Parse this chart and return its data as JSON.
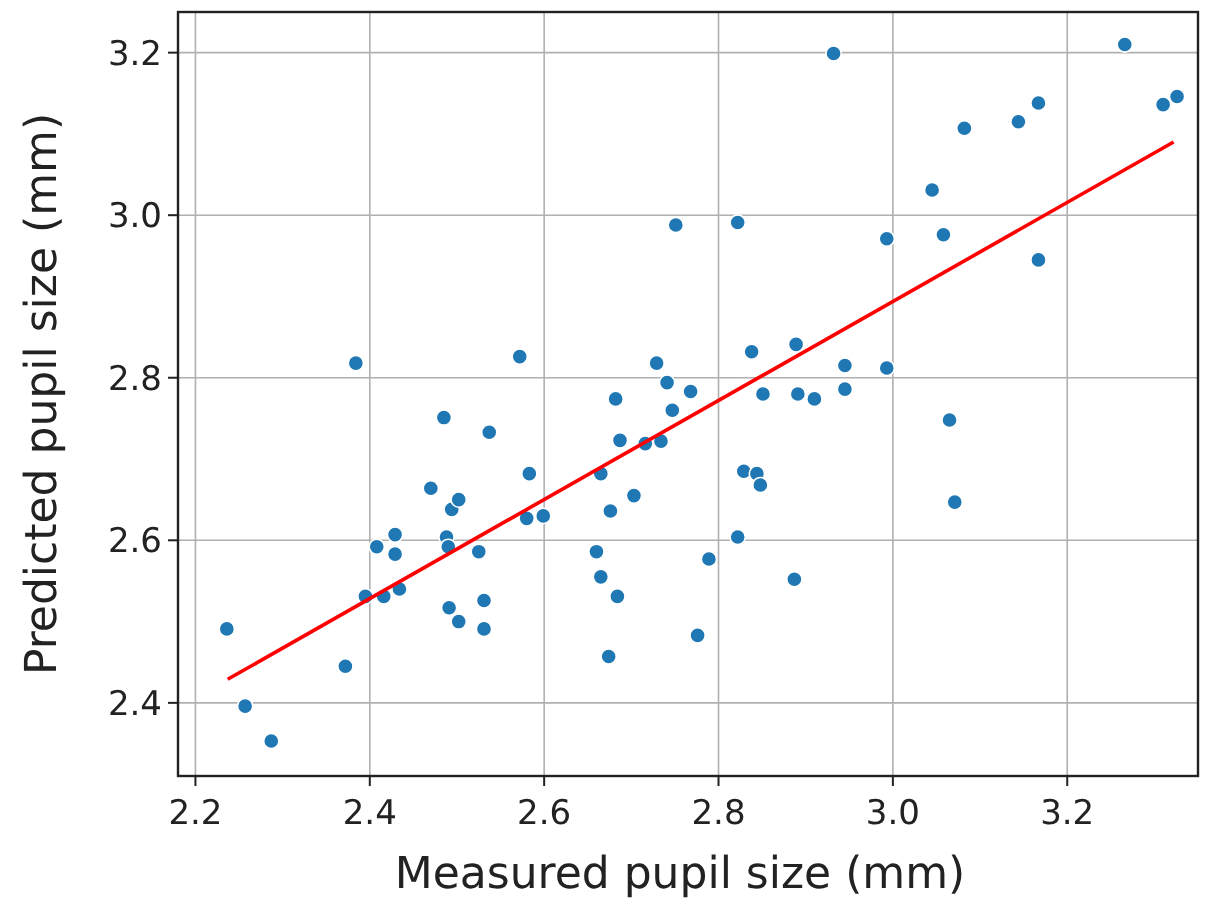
{
  "chart_data": {
    "type": "scatter",
    "xlabel": "Measured pupil size (mm)",
    "ylabel": "Predicted pupil size (mm)",
    "xlim": [
      2.18,
      3.35
    ],
    "ylim": [
      2.31,
      3.25
    ],
    "xticks": [
      2.2,
      2.4,
      2.6,
      2.8,
      {
        "value": 3,
        "label": "3.0"
      },
      3.2
    ],
    "yticks": [
      2.4,
      2.6,
      2.8,
      {
        "value": 3,
        "label": "3.0"
      },
      3.2
    ],
    "grid": true,
    "x": [
      2.236,
      2.257,
      2.287,
      2.372,
      2.384,
      2.395,
      2.408,
      2.416,
      2.429,
      2.429,
      2.434,
      2.47,
      2.485,
      2.488,
      2.49,
      2.491,
      2.494,
      2.502,
      2.502,
      2.525,
      2.531,
      2.531,
      2.537,
      2.572,
      2.583,
      2.58,
      2.599,
      2.665,
      2.66,
      2.665,
      2.676,
      2.674,
      2.684,
      2.682,
      2.687,
      2.703,
      2.716,
      2.729,
      2.734,
      2.741,
      2.747,
      2.751,
      2.768,
      2.776,
      2.789,
      2.822,
      2.822,
      2.829,
      2.838,
      2.844,
      2.848,
      2.851,
      2.887,
      2.889,
      2.891,
      2.91,
      2.932,
      2.945,
      2.945,
      2.993,
      2.993,
      3.045,
      3.058,
      3.065,
      3.071,
      3.082,
      3.144,
      3.167,
      3.167,
      3.266,
      3.31,
      3.326
    ],
    "series": [
      {
        "marker": "circle",
        "color": "#1f77b4",
        "values": [
          2.491,
          2.396,
          2.353,
          2.445,
          2.818,
          2.531,
          2.592,
          2.531,
          2.607,
          2.583,
          2.54,
          2.664,
          2.751,
          2.604,
          2.592,
          2.517,
          2.638,
          2.65,
          2.5,
          2.586,
          2.526,
          2.491,
          2.733,
          2.826,
          2.682,
          2.627,
          2.63,
          2.682,
          2.586,
          2.555,
          2.636,
          2.457,
          2.531,
          2.774,
          2.723,
          2.655,
          2.719,
          2.818,
          2.722,
          2.794,
          2.76,
          2.988,
          2.783,
          2.483,
          2.577,
          2.991,
          2.604,
          2.685,
          2.832,
          2.682,
          2.668,
          2.78,
          2.552,
          2.841,
          2.78,
          2.774,
          3.199,
          2.815,
          2.786,
          2.971,
          2.812,
          3.031,
          2.976,
          2.748,
          2.647,
          3.107,
          3.115,
          3.138,
          2.945,
          3.21,
          3.136,
          3.146
        ]
      },
      {
        "type": "line",
        "color": "#ff0000",
        "x": [
          2.237,
          3.322
        ],
        "values": [
          2.429,
          3.09
        ],
        "line_style": "solid"
      }
    ]
  }
}
